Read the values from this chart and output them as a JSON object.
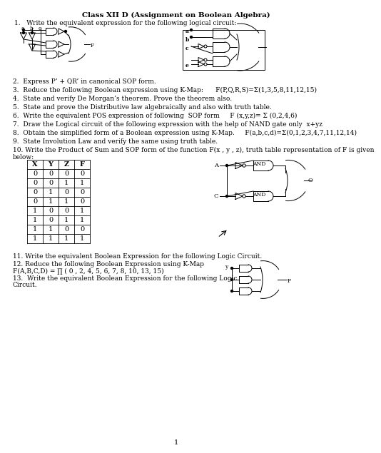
{
  "title": "Class XII D (Assignment on Boolean Algebra)",
  "bg_color": "#ffffff",
  "text_color": "#000000",
  "title_fs": 7.5,
  "body_fs": 6.5,
  "small_fs": 5.5,
  "q1": "1.   Write the equivalent expression for the following logical circuit:",
  "q2": "2.  Express P’ + QR’ in canonical SOP form.",
  "q3": "3.  Reduce the following Boolean expression using K-Map:      F(P,Q,R,S)=Σ(1,3,5,8,11,12,15)",
  "q4": "4.  State and verify De Morgan’s theorem. Prove the theorem also.",
  "q5": "5.  State and prove the Distributive law algebraically and also with truth table.",
  "q6": "6.  Write the equivalent POS expression of following  SOP form     F (x,y,z)= Σ (0,2,4,6)",
  "q7": "7.  Draw the Logical circuit of the following expression with the help of NAND gate only  x+yz",
  "q8": "8.  Obtain the simplified form of a Boolean expression using K-Map.     F(a,b,c,d)=Σ(0,1,2,3,4,7,11,12,14)",
  "q9": "9.  State Involution Law and verify the same using truth table.",
  "q10": "10. Write the Product of Sum and SOP form of the function F(x , y , z), truth table representation of F is given",
  "q10b": "below:",
  "table_headers": [
    "X",
    "Y",
    "Z",
    "F"
  ],
  "table_data": [
    [
      0,
      0,
      0,
      0
    ],
    [
      0,
      0,
      1,
      1
    ],
    [
      0,
      1,
      0,
      0
    ],
    [
      0,
      1,
      1,
      0
    ],
    [
      1,
      0,
      0,
      1
    ],
    [
      1,
      0,
      1,
      1
    ],
    [
      1,
      1,
      0,
      0
    ],
    [
      1,
      1,
      1,
      1
    ]
  ],
  "q11": "11. Write the equivalent Boolean Expression for the following Logic Circuit.",
  "q12": "12. Reduce the following Boolean Expression using K-Map",
  "q12b": "F(A,B,C,D) = ∏ ( 0 , 2, 4, 5, 6, 7, 8, 10, 13, 15)",
  "q13a": "13.  Write the equivalent Boolean Expression for the following Logic",
  "q13b": "Circuit.",
  "page_num": "1"
}
